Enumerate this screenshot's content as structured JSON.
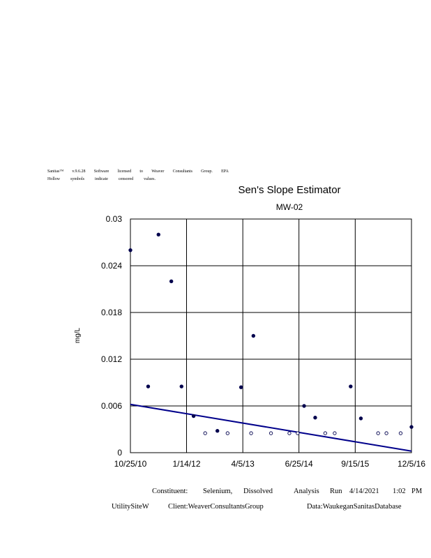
{
  "header": {
    "line1": [
      "Sanitas™",
      "v.9.6.28",
      "Software",
      "licensed",
      "to",
      "Weaver",
      "Consultants",
      "Group.",
      "EPA"
    ],
    "line2": [
      "Hollow",
      "symbols",
      "indicate",
      "censored",
      "values."
    ]
  },
  "chart_data": {
    "type": "scatter",
    "title": "Sen's Slope Estimator",
    "subtitle": "MW-02",
    "ylabel": "mg/L",
    "xlabel": "",
    "ylim": [
      0,
      0.03
    ],
    "yticks": [
      0,
      0.006,
      0.012,
      0.018,
      0.024,
      0.03
    ],
    "ytick_labels": [
      "0",
      "0.006",
      "0.012",
      "0.018",
      "0.024",
      "0.03"
    ],
    "xlim": [
      "2010-10-25",
      "2016-12-05"
    ],
    "xticks": [
      "2010-10-25",
      "2012-01-14",
      "2013-04-05",
      "2014-06-25",
      "2015-09-15",
      "2016-12-05"
    ],
    "xtick_labels": [
      "10/25/10",
      "1/14/12",
      "4/5/13",
      "6/25/14",
      "9/15/15",
      "12/5/16"
    ],
    "grid": true,
    "series": [
      {
        "name": "",
        "marker": "filled",
        "points": [
          [
            "2010-10-25",
            0.026
          ],
          [
            "2011-03-15",
            0.0085
          ],
          [
            "2011-06-05",
            0.028
          ],
          [
            "2011-09-15",
            0.022
          ],
          [
            "2011-12-05",
            0.0085
          ],
          [
            "2012-03-10",
            0.0047
          ],
          [
            "2012-09-15",
            0.0028
          ],
          [
            "2013-03-22",
            0.0084
          ],
          [
            "2013-06-28",
            0.015
          ],
          [
            "2014-08-05",
            0.006
          ],
          [
            "2014-11-01",
            0.0045
          ],
          [
            "2015-08-10",
            0.0085
          ],
          [
            "2015-10-30",
            0.0044
          ],
          [
            "2016-12-05",
            0.0033
          ]
        ]
      },
      {
        "name": "",
        "marker": "hollow",
        "points": [
          [
            "2012-06-10",
            0.0025
          ],
          [
            "2012-12-05",
            0.0025
          ],
          [
            "2013-06-10",
            0.0025
          ],
          [
            "2013-11-15",
            0.0025
          ],
          [
            "2014-04-10",
            0.0025
          ],
          [
            "2014-06-15",
            0.0025
          ],
          [
            "2015-01-20",
            0.0025
          ],
          [
            "2015-04-05",
            0.0025
          ],
          [
            "2016-03-15",
            0.0025
          ],
          [
            "2016-05-20",
            0.0025
          ],
          [
            "2016-09-10",
            0.0025
          ]
        ]
      }
    ],
    "trend_line": {
      "color": "#00008B",
      "start": [
        "2010-10-25",
        0.0062
      ],
      "end": [
        "2016-12-05",
        0.0002
      ]
    },
    "marker_color": "#00004d"
  },
  "footer": {
    "constituent": "Constituent:",
    "analyte": "Selenium,",
    "fraction": "Dissolved",
    "analysis": "Analysis",
    "run": "Run",
    "date": "4/14/2021",
    "time": "1:02",
    "ampm": "PM",
    "site": "UtilitySiteW",
    "client": "Client:WeaverConsultantsGroup",
    "data_source": "Data:WaukeganSanitasDatabase"
  }
}
